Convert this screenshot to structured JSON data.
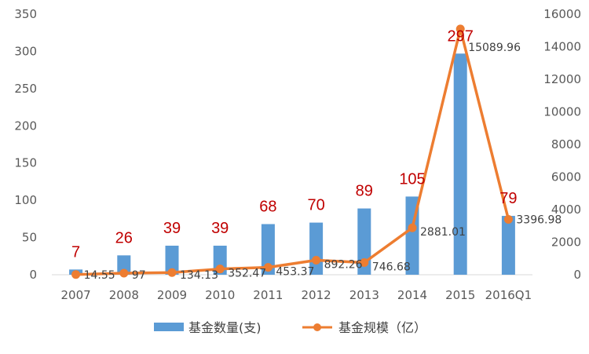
{
  "chart_data": {
    "type": "bar",
    "categories": [
      "2007",
      "2008",
      "2009",
      "2010",
      "2011",
      "2012",
      "2013",
      "2014",
      "2015",
      "2016Q1"
    ],
    "series": [
      {
        "name": "基金数量(支)",
        "type": "bar",
        "axis": "left",
        "color": "#5b9bd5",
        "values": [
          7,
          26,
          39,
          39,
          68,
          70,
          89,
          105,
          297,
          79
        ],
        "labels": [
          "7",
          "26",
          "39",
          "39",
          "68",
          "70",
          "89",
          "105",
          "297",
          "79"
        ]
      },
      {
        "name": "基金规模（亿）",
        "type": "line",
        "axis": "right",
        "color": "#ed7d31",
        "values": [
          14.55,
          97,
          134.13,
          352.47,
          453.37,
          892.26,
          746.68,
          2881.01,
          15089.96,
          3396.98
        ],
        "labels": [
          "14.55",
          "97",
          "134.13",
          "352.47",
          "453.37",
          "892.26",
          "746.68",
          "2881.01",
          "15089.96",
          "3396.98"
        ]
      }
    ],
    "y_left": {
      "ylim": [
        0,
        350
      ],
      "ticks": [
        "0",
        "50",
        "100",
        "150",
        "200",
        "250",
        "300",
        "350"
      ]
    },
    "y_right": {
      "ylim": [
        0,
        16000
      ],
      "ticks": [
        "0",
        "2000",
        "4000",
        "6000",
        "8000",
        "10000",
        "12000",
        "14000",
        "16000"
      ]
    },
    "grid": false,
    "legend": {
      "position": "bottom",
      "entries": [
        "基金数量(支)",
        "基金规模（亿）"
      ]
    },
    "title": "",
    "xlabel": "",
    "ylabel": ""
  }
}
